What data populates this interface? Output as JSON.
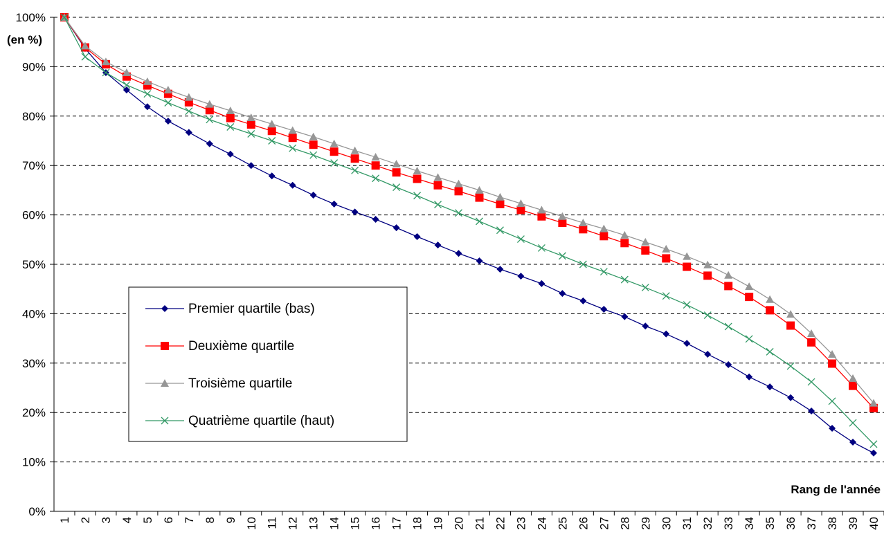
{
  "chart_data": {
    "type": "line",
    "y_axis_label": "(en %)",
    "x_axis_label": "Rang de l'année",
    "categories": [
      "1",
      "2",
      "3",
      "4",
      "5",
      "6",
      "7",
      "8",
      "9",
      "10",
      "11",
      "12",
      "13",
      "14",
      "15",
      "16",
      "17",
      "18",
      "19",
      "20",
      "21",
      "22",
      "23",
      "24",
      "25",
      "26",
      "27",
      "28",
      "29",
      "30",
      "31",
      "32",
      "33",
      "34",
      "35",
      "36",
      "37",
      "38",
      "39",
      "40"
    ],
    "ylim": [
      0,
      100
    ],
    "yticks": [
      {
        "value": 0,
        "label": "0%"
      },
      {
        "value": 10,
        "label": "10%"
      },
      {
        "value": 20,
        "label": "20%"
      },
      {
        "value": 30,
        "label": "30%"
      },
      {
        "value": 40,
        "label": "40%"
      },
      {
        "value": 50,
        "label": "50%"
      },
      {
        "value": 60,
        "label": "60%"
      },
      {
        "value": 70,
        "label": "70%"
      },
      {
        "value": 80,
        "label": "80%"
      },
      {
        "value": 90,
        "label": "90%"
      },
      {
        "value": 100,
        "label": "100%"
      }
    ],
    "grid": true,
    "series": [
      {
        "name": "Premier quartile (bas)",
        "color": "#000080",
        "marker": "diamond",
        "values": [
          100,
          93.7,
          88.8,
          85.3,
          81.9,
          79,
          76.7,
          74.4,
          72.3,
          70,
          67.9,
          66,
          64,
          62.2,
          60.6,
          59.1,
          57.4,
          55.6,
          53.9,
          52.2,
          50.7,
          49,
          47.6,
          46.1,
          44.1,
          42.6,
          40.9,
          39.4,
          37.5,
          35.9,
          34,
          31.8,
          29.7,
          27.2,
          25.2,
          23,
          20.3,
          16.8,
          14,
          11.8
        ]
      },
      {
        "name": "Deuxième quartile",
        "color": "#ff0000",
        "marker": "square",
        "values": [
          100,
          93.9,
          90.5,
          88,
          86.2,
          84.5,
          82.8,
          81.2,
          79.6,
          78.3,
          77,
          75.6,
          74.2,
          72.8,
          71.4,
          70,
          68.6,
          67.3,
          66,
          64.8,
          63.5,
          62.2,
          61,
          59.7,
          58.4,
          57.1,
          55.7,
          54.3,
          52.8,
          51.2,
          49.5,
          47.7,
          45.6,
          43.4,
          40.7,
          37.6,
          34.2,
          29.9,
          25.4,
          20.9
        ]
      },
      {
        "name": "Troisième quartile",
        "color": "#969696",
        "marker": "triangle",
        "values": [
          100,
          94.2,
          91,
          88.8,
          87,
          85.3,
          83.8,
          82.4,
          81.1,
          79.7,
          78.4,
          77.1,
          75.8,
          74.4,
          73,
          71.7,
          70.3,
          68.9,
          67.6,
          66.3,
          65,
          63.6,
          62.3,
          61,
          59.7,
          58.4,
          57.2,
          55.9,
          54.5,
          53.1,
          51.6,
          49.9,
          47.8,
          45.5,
          42.9,
          39.9,
          36,
          31.8,
          26.9,
          21.9
        ]
      },
      {
        "name": "Quatrième quartile (haut)",
        "color": "#339966",
        "marker": "x",
        "values": [
          100,
          92,
          88.8,
          86.3,
          84.5,
          82.7,
          81,
          79.3,
          77.8,
          76.4,
          75,
          73.5,
          72.1,
          70.5,
          69,
          67.4,
          65.6,
          63.9,
          62.1,
          60.4,
          58.7,
          56.9,
          55.1,
          53.3,
          51.7,
          50,
          48.5,
          46.9,
          45.3,
          43.6,
          41.8,
          39.7,
          37.4,
          34.9,
          32.3,
          29.4,
          26.2,
          22.3,
          17.9,
          13.6
        ]
      }
    ]
  }
}
